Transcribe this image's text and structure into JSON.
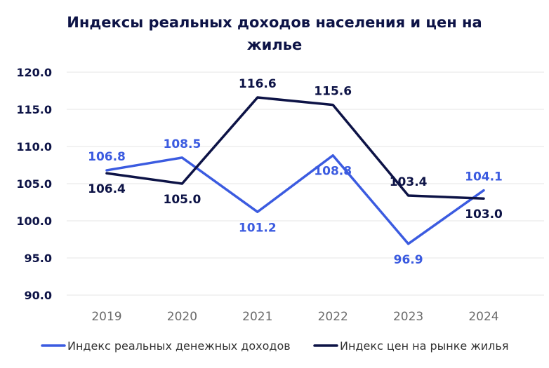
{
  "chart_data": {
    "type": "line",
    "title_line1": "Индексы реальных доходов населения и цен на",
    "title_line2": "жилье",
    "categories": [
      "2019",
      "2020",
      "2021",
      "2022",
      "2023",
      "2024"
    ],
    "series": [
      {
        "name": "Индекс реальных денежных доходов",
        "values": [
          106.8,
          108.5,
          101.2,
          108.8,
          96.9,
          104.1
        ],
        "value_labels": [
          "106.8",
          "108.5",
          "101.2",
          "108.8",
          "96.9",
          "104.1"
        ],
        "color": "#3b5be0"
      },
      {
        "name": "Индекс цен на рынке жилья",
        "values": [
          106.4,
          105.0,
          116.6,
          115.6,
          103.4,
          103.0
        ],
        "value_labels": [
          "106.4",
          "105.0",
          "116.6",
          "115.6",
          "103.4",
          "103.0"
        ],
        "color": "#0d1346"
      }
    ],
    "ylim": [
      90,
      120
    ],
    "y_ticks": [
      "90.0",
      "95.0",
      "100.0",
      "105.0",
      "110.0",
      "115.0",
      "120.0"
    ],
    "grid": true,
    "legend_position": "bottom"
  }
}
